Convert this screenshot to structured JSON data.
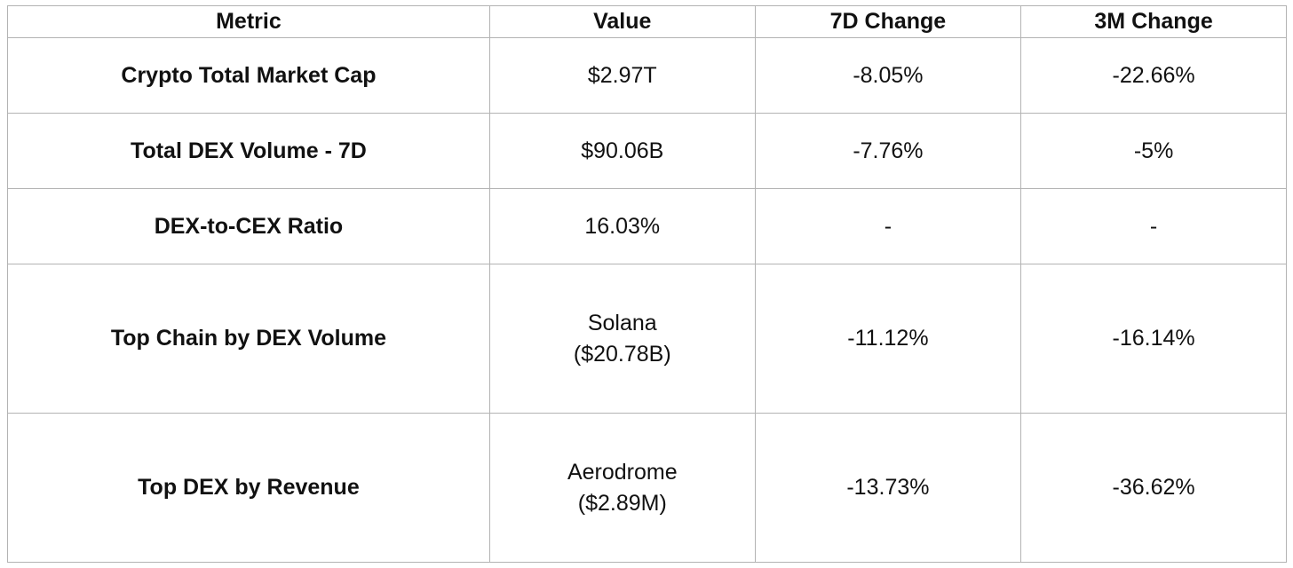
{
  "chart_data": {
    "type": "table",
    "columns": [
      "Metric",
      "Value",
      "7D Change",
      "3M Change"
    ],
    "rows": [
      [
        "Crypto Total Market Cap",
        "$2.97T",
        "-8.05%",
        "-22.66%"
      ],
      [
        "Total DEX Volume - 7D",
        "$90.06B",
        "-7.76%",
        "-5%"
      ],
      [
        "DEX-to-CEX Ratio",
        "16.03%",
        "-",
        "-"
      ],
      [
        "Top Chain by DEX Volume",
        "Solana\n($20.78B)",
        "-11.12%",
        "-16.14%"
      ],
      [
        "Top DEX by Revenue",
        "Aerodrome\n($2.89M)",
        "-13.73%",
        "-36.62%"
      ]
    ],
    "layout": {
      "grid": true,
      "header_bold": true,
      "first_column_bold": true,
      "text_align": "center"
    }
  },
  "style": {
    "border_color": "#b3b3b3",
    "text_color": "#111111",
    "background_color": "#ffffff"
  }
}
